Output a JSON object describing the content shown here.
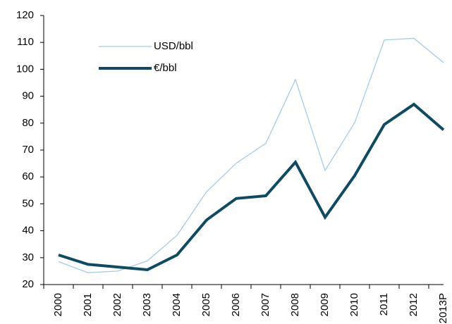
{
  "chart_data": {
    "type": "line",
    "categories": [
      "2000",
      "2001",
      "2002",
      "2003",
      "2004",
      "2005",
      "2006",
      "2007",
      "2008",
      "2009",
      "2010",
      "2011",
      "2012",
      "2013P"
    ],
    "series": [
      {
        "name": "USD/bbl",
        "color": "#a6cbe8",
        "values": [
          28.5,
          24.4,
          25.0,
          28.8,
          38.3,
          54.5,
          65.1,
          72.5,
          96.2,
          62.4,
          80.2,
          110.9,
          111.5,
          102.5
        ]
      },
      {
        "name": "€/bbl",
        "color": "#0d4a63",
        "values": [
          31.0,
          27.5,
          26.5,
          25.5,
          31.0,
          44.0,
          52.0,
          53.0,
          65.5,
          45.0,
          60.5,
          79.5,
          87.0,
          77.5
        ]
      }
    ],
    "ylim": [
      20,
      120
    ],
    "yticks": [
      20,
      30,
      40,
      50,
      60,
      70,
      80,
      90,
      100,
      110,
      120
    ],
    "grid": false,
    "legend": "upper left"
  }
}
